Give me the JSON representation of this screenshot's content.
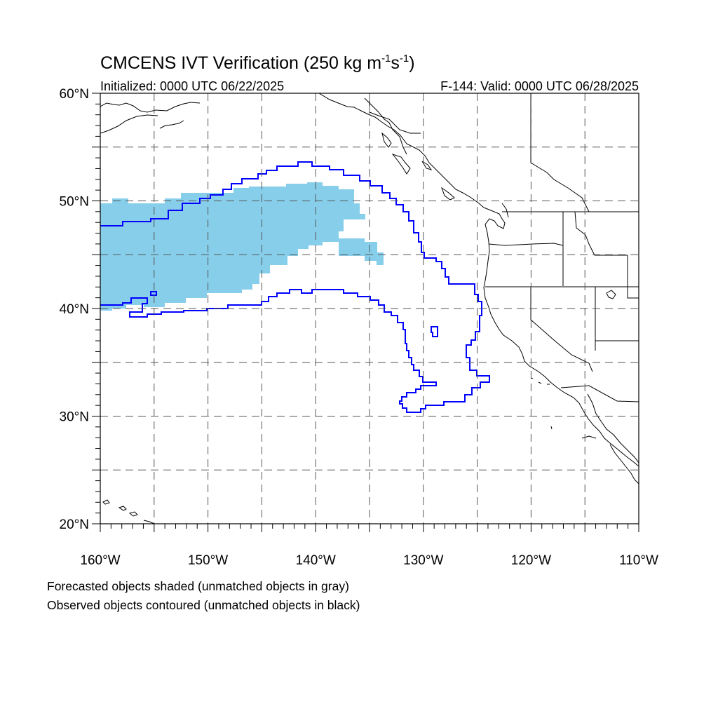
{
  "title": {
    "main": "CMCENS IVT Verification (250 kg m",
    "sup1": "-1",
    "mid": "s",
    "sup2": "-1",
    "close": ")"
  },
  "subtitle": {
    "left": "Initialized: 0000 UTC 06/22/2025",
    "right": "F-144: Valid: 0000 UTC 06/28/2025"
  },
  "map": {
    "lon_range": [
      -160,
      -110
    ],
    "lat_range": [
      20,
      60
    ],
    "lat_labels": [
      {
        "value": 60,
        "text": "60°N"
      },
      {
        "value": 50,
        "text": "50°N"
      },
      {
        "value": 40,
        "text": "40°N"
      },
      {
        "value": 30,
        "text": "30°N"
      },
      {
        "value": 20,
        "text": "20°N"
      }
    ],
    "lon_labels": [
      {
        "value": -160,
        "text": "160°W"
      },
      {
        "value": -150,
        "text": "150°W"
      },
      {
        "value": -140,
        "text": "140°W"
      },
      {
        "value": -130,
        "text": "130°W"
      },
      {
        "value": -120,
        "text": "120°W"
      },
      {
        "value": -110,
        "text": "110°W"
      }
    ],
    "grid_lons": [
      -155,
      -150,
      -145,
      -140,
      -135,
      -130,
      -125,
      -120,
      -115
    ],
    "grid_lats": [
      55,
      50,
      45,
      40,
      35,
      30,
      25
    ],
    "colors": {
      "forecast_fill": "#87ceeb",
      "observed_contour": "#0000ff",
      "coastline": "#000000",
      "grid": "#555555"
    }
  },
  "captions": [
    "Forecasted objects shaded (unmatched objects in gray)",
    "Observed objects contoured (unmatched objects in black)"
  ]
}
